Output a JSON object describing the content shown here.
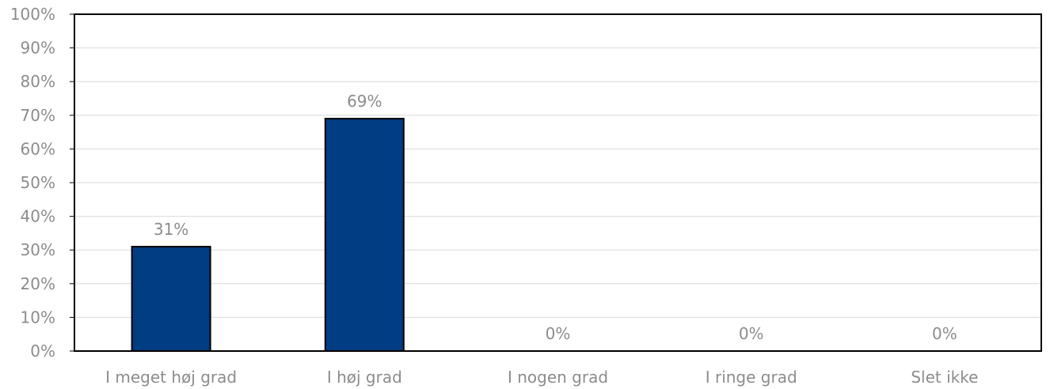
{
  "chart_data": {
    "type": "bar",
    "categories": [
      "I meget høj grad",
      "I høj grad",
      "I nogen grad",
      "I ringe grad",
      "Slet ikke"
    ],
    "values": [
      31,
      69,
      0,
      0,
      0
    ],
    "data_labels": [
      "31%",
      "69%",
      "0%",
      "0%",
      "0%"
    ],
    "title": "",
    "xlabel": "",
    "ylabel": "",
    "ylim": [
      0,
      100
    ],
    "yticks": [
      0,
      10,
      20,
      30,
      40,
      50,
      60,
      70,
      80,
      90,
      100
    ],
    "ytick_labels": [
      "0%",
      "10%",
      "20%",
      "30%",
      "40%",
      "50%",
      "60%",
      "70%",
      "80%",
      "90%",
      "100%"
    ],
    "grid": true,
    "legend": "none",
    "colors": {
      "bar": "#003d82",
      "bar_outline": "#000000",
      "grid": "#d9d9d9",
      "axis": "#000000",
      "text": "#8c8c8c"
    }
  }
}
